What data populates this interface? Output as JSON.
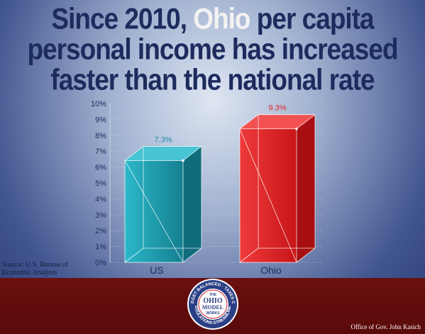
{
  "title": {
    "line1_a": "Since 2010, ",
    "line1_b": "Ohio",
    "line1_c": " per capita",
    "line2": "personal income has increased",
    "line3": "faster than the national rate"
  },
  "source": {
    "line1": "Source: U.S. Bureau of",
    "line2": "Economic Analysis"
  },
  "seal": {
    "top_ring": "BUDGET BALANCED · TAXES CUT",
    "bottom_ring": "REGULATIONS STREAMLINED",
    "word1": "THE",
    "word2": "OHIO",
    "word3": "MODEL",
    "word4": "WORKS"
  },
  "office": "Office of Gov. John Kasich",
  "colors": {
    "us": "#1fa3b5",
    "ohio": "#e3262a",
    "title": "#1d2b5e",
    "footer": "#600c0c"
  },
  "chart_data": {
    "type": "bar",
    "categories": [
      "US",
      "Ohio"
    ],
    "values": [
      7.3,
      9.3
    ],
    "value_labels": [
      "7.3%",
      "9.3%"
    ],
    "yticks": [
      "0%",
      "1%",
      "2%",
      "3%",
      "4%",
      "5%",
      "6%",
      "7%",
      "8%",
      "9%",
      "10%"
    ],
    "ylim": [
      0,
      10
    ],
    "grid": true,
    "style": "3d-box"
  }
}
